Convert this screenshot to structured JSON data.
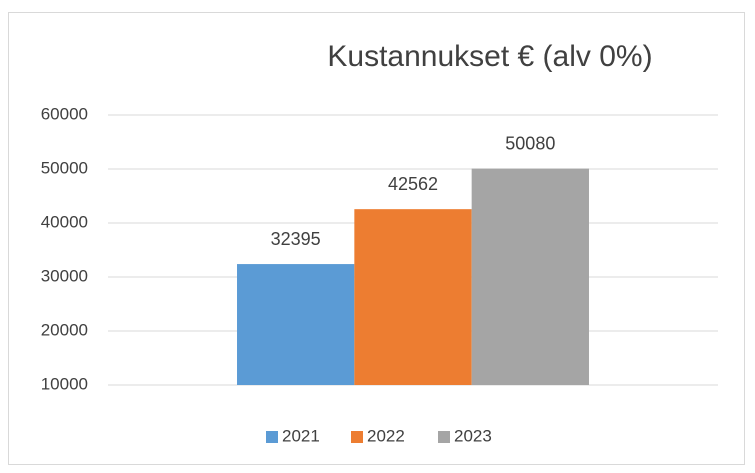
{
  "chart_data": {
    "type": "bar",
    "title": "Kustannukset € (alv 0%)",
    "categories": [
      null
    ],
    "series": [
      {
        "name": "2021",
        "color": "#5b9bd5",
        "values": [
          32395
        ]
      },
      {
        "name": "2022",
        "color": "#ed7d31",
        "values": [
          42562
        ]
      },
      {
        "name": "2023",
        "color": "#a5a5a5",
        "values": [
          50080
        ]
      }
    ],
    "ylim": [
      10000,
      60000
    ],
    "yticks": [
      10000,
      20000,
      30000,
      40000,
      50000,
      60000
    ],
    "grid": true,
    "legend": "bottom",
    "data_labels": true
  }
}
